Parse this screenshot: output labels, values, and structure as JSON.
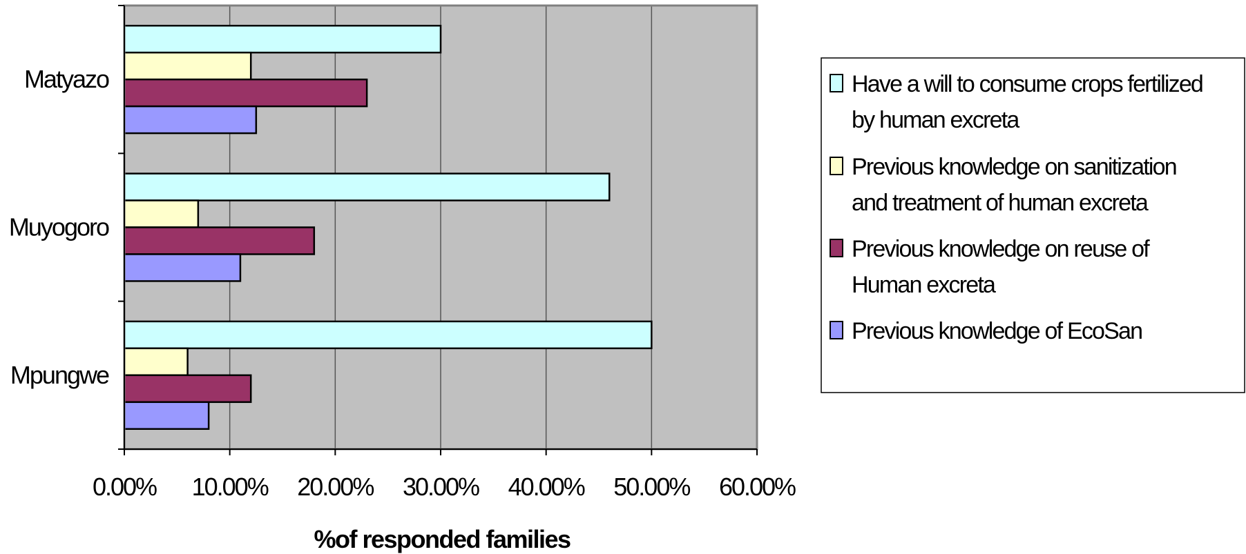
{
  "chart_data": {
    "type": "bar",
    "orientation": "horizontal",
    "categories": [
      "Matyazo",
      "Muyogoro",
      "Mpungwe"
    ],
    "series": [
      {
        "name": "Have a will to consume crops fertilized by human excreta",
        "color": "#ccffff",
        "values": [
          0.3,
          0.46,
          0.5
        ]
      },
      {
        "name": "Previous knowledge on sanitization and treatment of human excreta",
        "color": "#ffffcc",
        "values": [
          0.12,
          0.07,
          0.06
        ]
      },
      {
        "name": "Previous knowledge on reuse of Human excreta",
        "color": "#993366",
        "values": [
          0.23,
          0.18,
          0.12
        ]
      },
      {
        "name": "Previous knowledge of EcoSan",
        "color": "#9999ff",
        "values": [
          0.125,
          0.11,
          0.08
        ]
      }
    ],
    "xlim": [
      0,
      0.6
    ],
    "xticks": [
      0,
      0.1,
      0.2,
      0.3,
      0.4,
      0.5,
      0.6
    ],
    "xtick_labels": [
      "0.00%",
      "10.00%",
      "20.00%",
      "30.00%",
      "40.00%",
      "50.00%",
      "60.00%"
    ],
    "xlabel": "%of responded families",
    "ylabel": "",
    "title": "",
    "grid": "vertical",
    "plot_background": "#c0c0c0",
    "legend_position": "right"
  }
}
